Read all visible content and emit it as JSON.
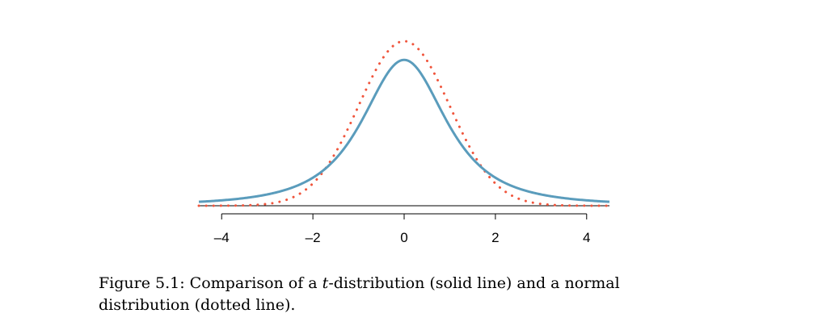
{
  "chart_data": {
    "type": "line",
    "title": "",
    "xlabel": "",
    "ylabel": "",
    "xlim": [
      -4.5,
      4.5
    ],
    "x_ticks": [
      -4,
      -2,
      0,
      2,
      4
    ],
    "x_tick_labels": [
      "–4",
      "–2",
      "0",
      "2",
      "4"
    ],
    "y_axis_shown": false,
    "grid": false,
    "series": [
      {
        "style": "solid",
        "color": "#5a9cbc",
        "distribution": "t",
        "df": 2,
        "peak_density": 0.354
      },
      {
        "style": "dotted",
        "color": "#f0553c",
        "distribution": "normal",
        "mean": 0,
        "sd": 1,
        "peak_density": 0.399
      }
    ]
  },
  "caption": {
    "prefix": "Figure 5.1: Comparison of a ",
    "dist_var": "t",
    "suffix": "-distribution (solid line) and a normal distribution (dotted line)."
  }
}
